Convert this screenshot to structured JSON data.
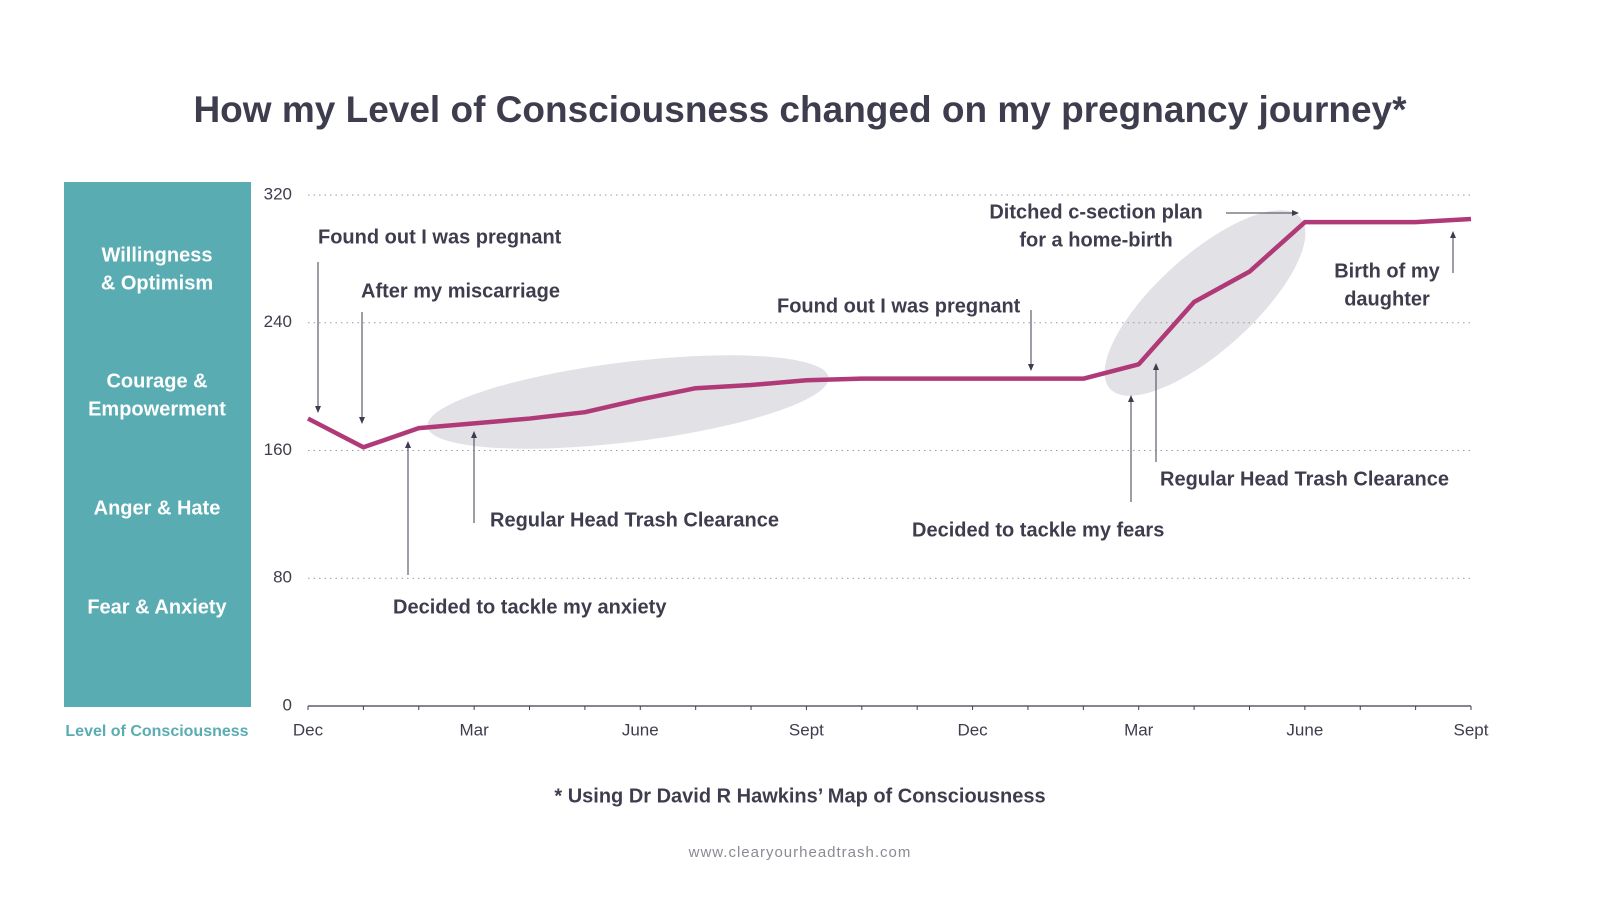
{
  "chart_data": {
    "type": "line",
    "title": "How my Level of Consciousness changed on my pregnancy journey*",
    "y_label": "Level of Consciousness",
    "band_labels": [
      [
        "Willingness",
        "& Optimism"
      ],
      [
        "Courage &",
        "Empowerment"
      ],
      [
        "Anger & Hate"
      ],
      [
        "Fear & Anxiety"
      ]
    ],
    "categories": [
      "Dec",
      null,
      null,
      "Mar",
      null,
      null,
      "June",
      null,
      null,
      "Sept",
      null,
      null,
      "Dec",
      null,
      null,
      "Mar",
      null,
      null,
      "June",
      null,
      null,
      "Sept"
    ],
    "series": [
      {
        "color": "#b03a78",
        "values": [
          180,
          162,
          174,
          177,
          180,
          184,
          192,
          199,
          201,
          204,
          205,
          205,
          205,
          205,
          205,
          214,
          253,
          272,
          303,
          303,
          303,
          305
        ]
      }
    ],
    "ylim": [
      0,
      320
    ],
    "yticks": [
      0,
      80,
      160,
      240,
      320
    ],
    "grid": true,
    "annotations": [
      [
        "Found out I was pregnant"
      ],
      [
        "After my miscarriage"
      ],
      [
        "Decided to tackle my anxiety"
      ],
      [
        "Regular Head Trash Clearance"
      ],
      [
        "Found out I was pregnant"
      ],
      [
        "Decided to tackle my fears"
      ],
      [
        "Ditched c-section plan",
        "for a home-birth"
      ],
      [
        "Regular Head Trash Clearance"
      ],
      [
        "Birth of my",
        "daughter"
      ]
    ],
    "footnote": "* Using Dr David R Hawkins’ Map of Consciousness",
    "source": "www.clearyourheadtrash.com"
  }
}
